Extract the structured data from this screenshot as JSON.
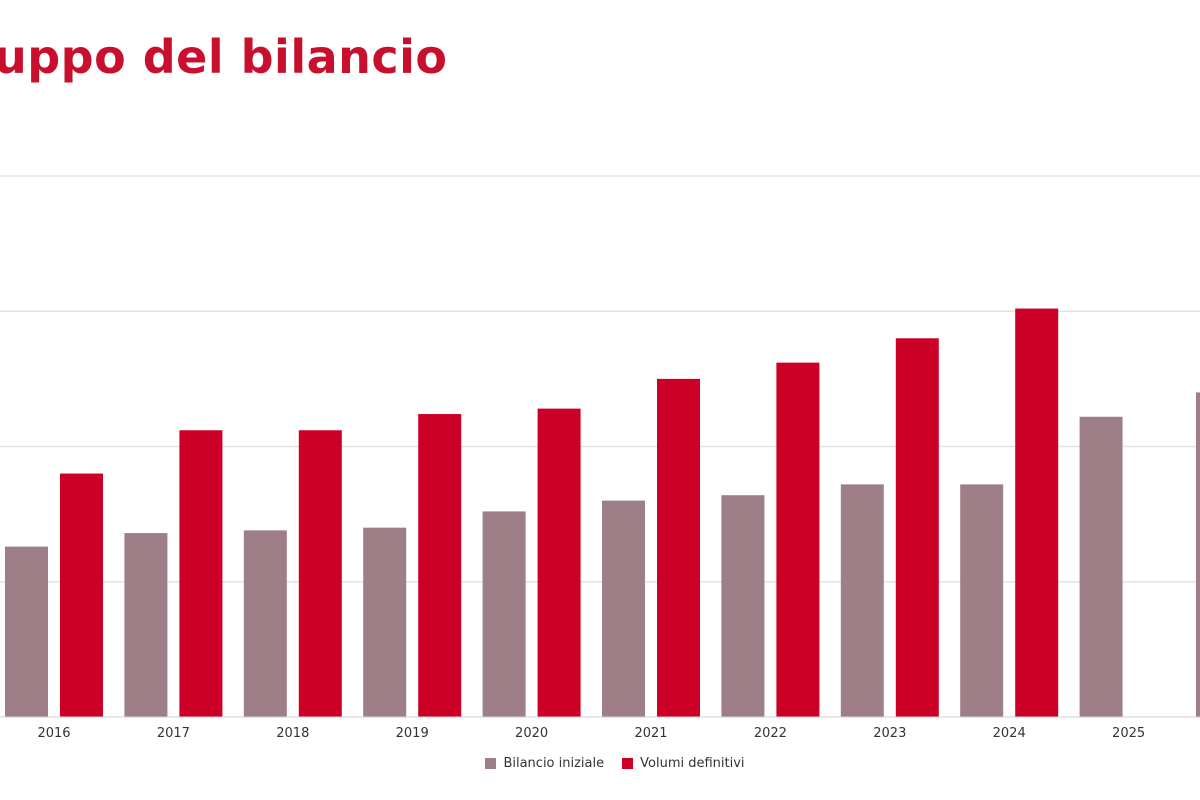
{
  "title": "uppo del bilancio",
  "colors": {
    "series1": "#9e7e87",
    "series2": "#cc0026",
    "grid": "#e3e3e3",
    "axis_text": "#333333"
  },
  "legend": [
    {
      "name": "Bilancio iniziale",
      "color": "#9e7e87"
    },
    {
      "name": "Volumi definitivi",
      "color": "#cc0026"
    }
  ],
  "chart_data": {
    "type": "bar",
    "title": "uppo del bilancio",
    "categories": [
      "2016",
      "2017",
      "2018",
      "2019",
      "2020",
      "2021",
      "2022",
      "2023",
      "2024",
      "2025"
    ],
    "series": [
      {
        "name": "Bilancio iniziale",
        "values": [
          6.3,
          6.8,
          6.9,
          7.0,
          7.6,
          8.0,
          8.2,
          8.6,
          8.6,
          11.1
        ]
      },
      {
        "name": "Volumi definitivi",
        "values": [
          9.0,
          10.6,
          10.6,
          11.2,
          11.4,
          12.5,
          13.1,
          14.0,
          15.1,
          null
        ]
      }
    ],
    "ylim": [
      0,
      20
    ],
    "grid": true,
    "legend_position": "bottom"
  }
}
